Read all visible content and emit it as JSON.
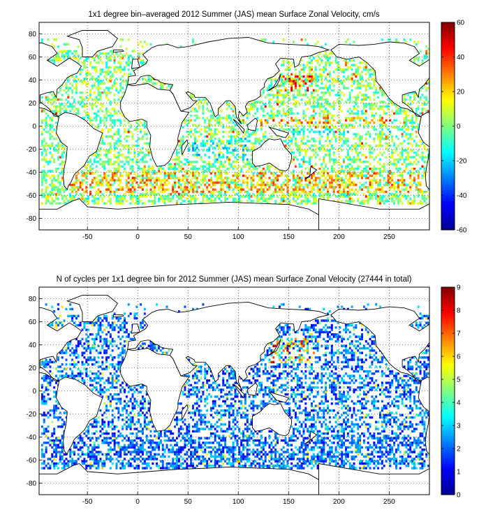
{
  "chart_data": [
    {
      "type": "heatmap",
      "title": "1x1 degree bin–averaged 2012 Summer (JAS) mean Surface Zonal Velocity, cm/s",
      "xlabel": "",
      "ylabel": "",
      "xlim": [
        -98,
        290
      ],
      "ylim": [
        -90,
        90
      ],
      "xticks": [
        -50,
        0,
        50,
        100,
        150,
        200,
        250
      ],
      "yticks": [
        80,
        60,
        40,
        20,
        0,
        -20,
        -40,
        -60,
        -80
      ],
      "grid": true,
      "colorbar": {
        "min": -60,
        "max": 60,
        "ticks": [
          60,
          40,
          20,
          0,
          -20,
          -40,
          -60
        ],
        "colormap": "jet"
      },
      "field_bands": [
        {
          "lat": [
            44,
            30
          ],
          "lon": [
            140,
            175
          ],
          "range": [
            15,
            55
          ]
        },
        {
          "lat": [
            8,
            2
          ],
          "lon": [
            120,
            265
          ],
          "range": [
            10,
            45
          ]
        },
        {
          "lat": [
            -2,
            -8
          ],
          "lon": [
            130,
            260
          ],
          "range": [
            -25,
            -5
          ]
        },
        {
          "lat": [
            -40,
            -58
          ],
          "lon": [
            -70,
            290
          ],
          "range": [
            10,
            40
          ]
        },
        {
          "lat": [
            -10,
            -30
          ],
          "lon": [
            50,
            110
          ],
          "range": [
            -30,
            -5
          ]
        }
      ]
    },
    {
      "type": "heatmap",
      "title": "N of cycles per 1x1 degree bin for 2012 Summer (JAS) mean Surface Zonal Velocity (27444 in total)",
      "xlabel": "",
      "ylabel": "",
      "xlim": [
        -98,
        290
      ],
      "ylim": [
        -90,
        90
      ],
      "xticks": [
        -50,
        0,
        50,
        100,
        150,
        200,
        250
      ],
      "yticks": [
        80,
        60,
        40,
        20,
        0,
        -20,
        -40,
        -60,
        -80
      ],
      "grid": true,
      "total_cycles": 27444,
      "colorbar": {
        "min": 0,
        "max": 9,
        "ticks": [
          9,
          8,
          7,
          6,
          5,
          4,
          3,
          2,
          1,
          0
        ],
        "colormap": "jet"
      },
      "field_bands": [
        {
          "lat": [
            45,
            25
          ],
          "lon": [
            130,
            175
          ],
          "range": [
            3,
            9
          ]
        },
        {
          "lat": [
            -35,
            -60
          ],
          "lon": [
            -70,
            290
          ],
          "range": [
            1,
            3
          ]
        }
      ]
    }
  ]
}
